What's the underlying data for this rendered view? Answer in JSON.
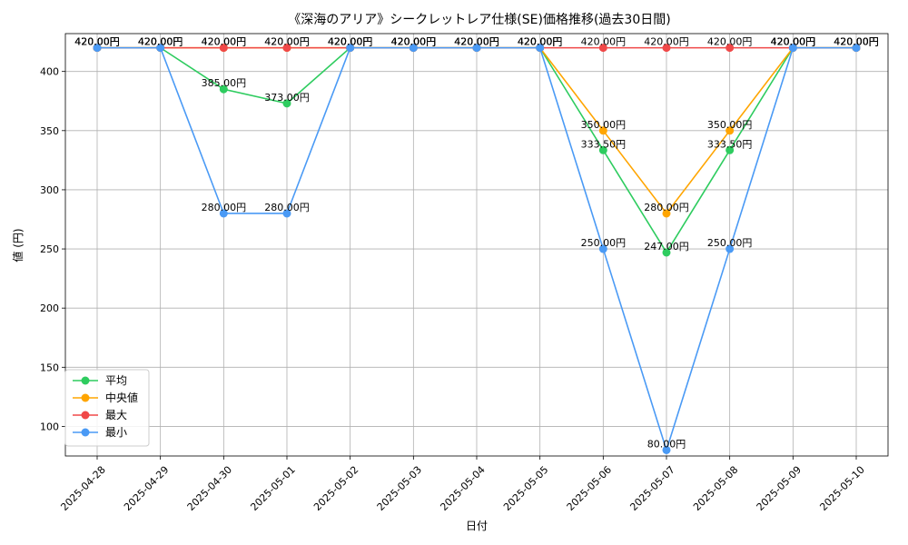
{
  "chart_data": {
    "type": "line",
    "title": "《深海のアリア》シークレットレア仕様(SE)価格推移(過去30日間)",
    "xlabel": "日付",
    "ylabel": "値 (円)",
    "ylim": [
      75,
      432
    ],
    "yticks": [
      100,
      150,
      200,
      250,
      300,
      350,
      400
    ],
    "grid": true,
    "legend_position": "bottom-left",
    "value_suffix": "円",
    "categories": [
      "2025-04-28",
      "2025-04-29",
      "2025-04-30",
      "2025-05-01",
      "2025-05-02",
      "2025-05-03",
      "2025-05-04",
      "2025-05-05",
      "2025-05-06",
      "2025-05-07",
      "2025-05-08",
      "2025-05-09",
      "2025-05-10"
    ],
    "series": [
      {
        "name": "平均",
        "color": "#2ecc5f",
        "values": [
          420,
          420,
          385,
          373,
          420,
          420,
          420,
          420,
          333.5,
          247,
          333.5,
          420,
          420
        ]
      },
      {
        "name": "中央値",
        "color": "#ffa500",
        "values": [
          420,
          420,
          420,
          420,
          420,
          420,
          420,
          420,
          350,
          280,
          350,
          420,
          420
        ]
      },
      {
        "name": "最大",
        "color": "#f04848",
        "values": [
          420,
          420,
          420,
          420,
          420,
          420,
          420,
          420,
          420,
          420,
          420,
          420,
          420
        ]
      },
      {
        "name": "最小",
        "color": "#4a9af5",
        "values": [
          420,
          420,
          280,
          280,
          420,
          420,
          420,
          420,
          250,
          80,
          250,
          420,
          420
        ]
      }
    ]
  }
}
